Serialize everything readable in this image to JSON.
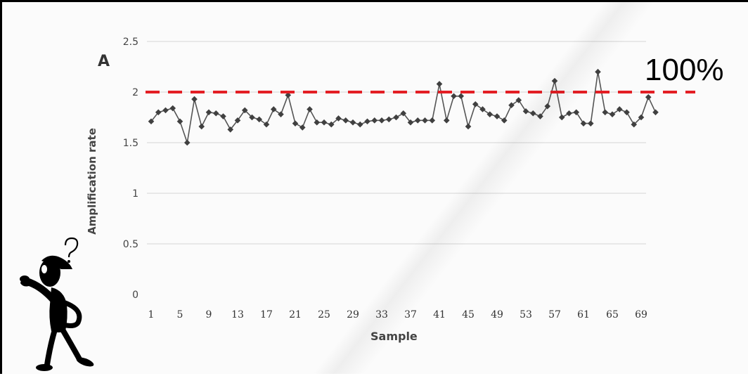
{
  "chart_data": {
    "type": "line",
    "panel_label": "A",
    "ylabel": "Amplification rate",
    "xlabel": "Sample",
    "ylim": [
      0,
      2.5
    ],
    "yticks": [
      "0",
      "0.5",
      "1",
      "1.5",
      "2",
      "2.5"
    ],
    "xticks": [
      "1",
      "5",
      "9",
      "13",
      "17",
      "21",
      "25",
      "29",
      "33",
      "37",
      "41",
      "45",
      "49",
      "53",
      "57",
      "61",
      "65",
      "69"
    ],
    "grid": true,
    "series": [
      {
        "values": [
          1.71,
          1.8,
          1.82,
          1.84,
          1.71,
          1.5,
          1.93,
          1.66,
          1.8,
          1.79,
          1.76,
          1.63,
          1.72,
          1.82,
          1.75,
          1.73,
          1.68,
          1.83,
          1.78,
          1.97,
          1.69,
          1.65,
          1.83,
          1.7,
          1.7,
          1.68,
          1.74,
          1.72,
          1.7,
          1.68,
          1.71,
          1.72,
          1.72,
          1.73,
          1.75,
          1.79,
          1.7,
          1.72,
          1.72,
          1.72,
          2.08,
          1.72,
          1.96,
          1.96,
          1.66,
          1.88,
          1.83,
          1.78,
          1.76,
          1.72,
          1.87,
          1.92,
          1.81,
          1.79,
          1.76,
          1.86,
          2.11,
          1.75,
          1.79,
          1.8,
          1.69,
          1.69,
          2.2,
          1.8,
          1.78,
          1.83,
          1.8,
          1.68,
          1.75,
          1.95,
          1.8
        ]
      }
    ],
    "reference_line": {
      "value": 2.0,
      "label": "100%",
      "color": "#e31e24",
      "style": "dashed"
    },
    "marker_color": "#404040",
    "line_color": "#555555"
  },
  "decoration": {
    "icon": "confused-thinking-figure-icon"
  }
}
